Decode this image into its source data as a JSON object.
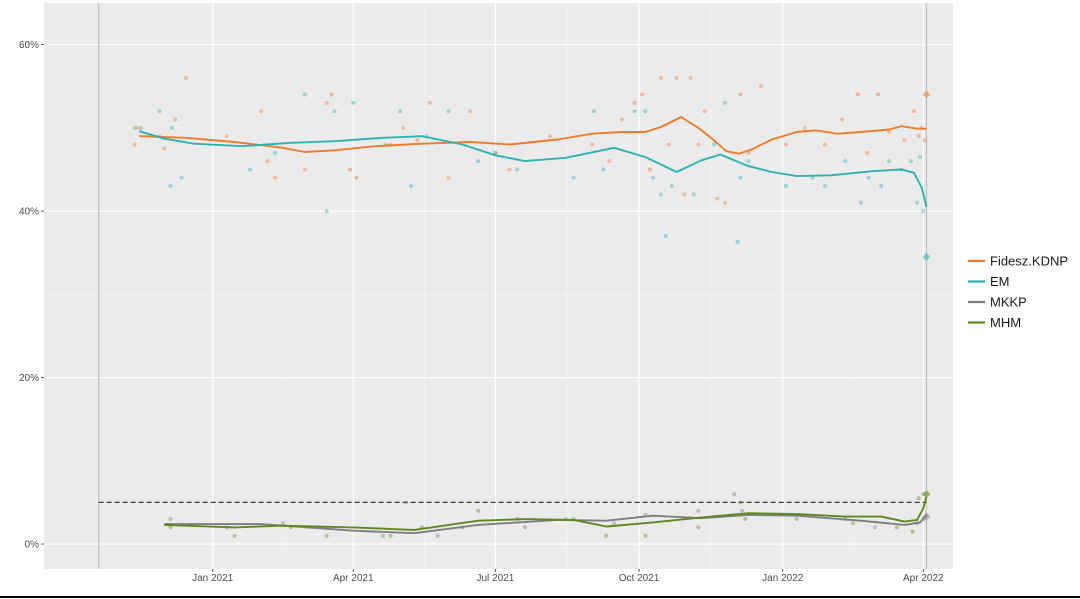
{
  "chart_data": {
    "type": "line",
    "title": "",
    "xlabel": "",
    "ylabel": "",
    "ylim": [
      -3,
      65
    ],
    "xlim": [
      "2020-09-15",
      "2022-04-20"
    ],
    "y_ticks": [
      {
        "value": 0,
        "label": "0%"
      },
      {
        "value": 20,
        "label": "20%"
      },
      {
        "value": 40,
        "label": "40%"
      },
      {
        "value": 60,
        "label": "60%"
      }
    ],
    "x_ticks": [
      {
        "date": "2021-01-01",
        "label": "Jan 2021"
      },
      {
        "date": "2021-04-01",
        "label": "Apr 2021"
      },
      {
        "date": "2021-07-01",
        "label": "Jul 2021"
      },
      {
        "date": "2021-10-01",
        "label": "Oct 2021"
      },
      {
        "date": "2022-01-01",
        "label": "Jan 2022"
      },
      {
        "date": "2022-04-01",
        "label": "Apr 2022"
      }
    ],
    "grid": true,
    "legend_position": "right",
    "vertical_lines": [
      "2020-10-20",
      "2022-04-03"
    ],
    "threshold": {
      "value": 5,
      "style": "dashed",
      "from": "2020-10-20",
      "to": "2022-04-03"
    },
    "series": [
      {
        "name": "Fidesz.KDNP",
        "color": "#f07b2a",
        "line": [
          [
            "2020-11-15",
            49.0
          ],
          [
            "2020-12-15",
            48.8
          ],
          [
            "2021-01-15",
            48.3
          ],
          [
            "2021-02-15",
            47.6
          ],
          [
            "2021-03-01",
            47.1
          ],
          [
            "2021-03-20",
            47.3
          ],
          [
            "2021-04-15",
            47.8
          ],
          [
            "2021-05-15",
            48.1
          ],
          [
            "2021-06-15",
            48.3
          ],
          [
            "2021-07-10",
            48.0
          ],
          [
            "2021-08-10",
            48.6
          ],
          [
            "2021-09-01",
            49.3
          ],
          [
            "2021-09-20",
            49.5
          ],
          [
            "2021-10-05",
            49.5
          ],
          [
            "2021-10-15",
            50.1
          ],
          [
            "2021-10-28",
            51.3
          ],
          [
            "2021-11-08",
            50.0
          ],
          [
            "2021-11-18",
            48.5
          ],
          [
            "2021-11-26",
            47.2
          ],
          [
            "2021-12-04",
            46.9
          ],
          [
            "2021-12-12",
            47.4
          ],
          [
            "2021-12-25",
            48.6
          ],
          [
            "2022-01-10",
            49.5
          ],
          [
            "2022-01-22",
            49.7
          ],
          [
            "2022-02-05",
            49.3
          ],
          [
            "2022-02-20",
            49.5
          ],
          [
            "2022-03-10",
            49.8
          ],
          [
            "2022-03-18",
            50.2
          ],
          [
            "2022-03-28",
            49.9
          ],
          [
            "2022-04-03",
            49.9
          ]
        ],
        "points": [
          [
            "2020-11-12",
            48.0
          ],
          [
            "2020-11-14",
            50.0
          ],
          [
            "2020-11-28",
            49.0
          ],
          [
            "2020-12-01",
            47.5
          ],
          [
            "2020-12-08",
            51.0
          ],
          [
            "2020-12-15",
            56.0
          ],
          [
            "2021-01-10",
            49.0
          ],
          [
            "2021-02-01",
            52.0
          ],
          [
            "2021-02-05",
            46.0
          ],
          [
            "2021-02-10",
            44.0
          ],
          [
            "2021-03-01",
            45.0
          ],
          [
            "2021-03-15",
            53.0
          ],
          [
            "2021-03-18",
            54.0
          ],
          [
            "2021-03-30",
            45.0
          ],
          [
            "2021-04-03",
            44.0
          ],
          [
            "2021-04-25",
            48.0
          ],
          [
            "2021-05-03",
            50.0
          ],
          [
            "2021-05-12",
            48.5
          ],
          [
            "2021-05-20",
            53.0
          ],
          [
            "2021-06-01",
            44.0
          ],
          [
            "2021-06-15",
            52.0
          ],
          [
            "2021-07-01",
            47.0
          ],
          [
            "2021-07-10",
            45.0
          ],
          [
            "2021-08-05",
            49.0
          ],
          [
            "2021-09-01",
            48.0
          ],
          [
            "2021-09-12",
            46.0
          ],
          [
            "2021-09-20",
            51.0
          ],
          [
            "2021-09-28",
            53.0
          ],
          [
            "2021-10-03",
            54.0
          ],
          [
            "2021-10-08",
            45.0
          ],
          [
            "2021-10-15",
            56.0
          ],
          [
            "2021-10-20",
            48.0
          ],
          [
            "2021-10-25",
            56.0
          ],
          [
            "2021-10-30",
            42.0
          ],
          [
            "2021-11-03",
            56.0
          ],
          [
            "2021-11-08",
            48.0
          ],
          [
            "2021-11-12",
            52.0
          ],
          [
            "2021-11-20",
            41.5
          ],
          [
            "2021-11-25",
            41.0
          ],
          [
            "2021-12-05",
            54.0
          ],
          [
            "2021-12-10",
            47.0
          ],
          [
            "2021-12-18",
            55.0
          ],
          [
            "2022-01-03",
            48.0
          ],
          [
            "2022-01-15",
            50.0
          ],
          [
            "2022-01-28",
            48.0
          ],
          [
            "2022-02-08",
            51.0
          ],
          [
            "2022-02-18",
            54.0
          ],
          [
            "2022-02-24",
            47.0
          ],
          [
            "2022-03-03",
            54.0
          ],
          [
            "2022-03-10",
            49.5
          ],
          [
            "2022-03-20",
            48.5
          ],
          [
            "2022-03-26",
            52.0
          ],
          [
            "2022-03-29",
            49.0
          ],
          [
            "2022-03-31",
            50.0
          ],
          [
            "2022-04-02",
            48.5
          ]
        ],
        "marker": [
          "2022-04-03",
          54.0
        ]
      },
      {
        "name": "EM",
        "color": "#2db3b0",
        "line": [
          [
            "2020-11-15",
            49.6
          ],
          [
            "2020-12-01",
            48.7
          ],
          [
            "2020-12-20",
            48.1
          ],
          [
            "2021-01-20",
            47.8
          ],
          [
            "2021-02-20",
            48.2
          ],
          [
            "2021-03-20",
            48.4
          ],
          [
            "2021-04-20",
            48.8
          ],
          [
            "2021-05-15",
            49.0
          ],
          [
            "2021-06-10",
            48.0
          ],
          [
            "2021-07-01",
            46.7
          ],
          [
            "2021-07-20",
            46.0
          ],
          [
            "2021-08-15",
            46.4
          ],
          [
            "2021-09-15",
            47.6
          ],
          [
            "2021-10-05",
            46.5
          ],
          [
            "2021-10-25",
            44.7
          ],
          [
            "2021-11-10",
            46.1
          ],
          [
            "2021-11-22",
            46.8
          ],
          [
            "2021-12-10",
            45.4
          ],
          [
            "2021-12-25",
            44.7
          ],
          [
            "2022-01-10",
            44.2
          ],
          [
            "2022-02-01",
            44.3
          ],
          [
            "2022-02-28",
            44.8
          ],
          [
            "2022-03-18",
            45.0
          ],
          [
            "2022-03-26",
            44.6
          ],
          [
            "2022-03-31",
            42.8
          ],
          [
            "2022-04-03",
            40.5
          ]
        ],
        "points": [
          [
            "2020-11-12",
            50.0
          ],
          [
            "2020-11-16",
            50.0
          ],
          [
            "2020-11-28",
            52.0
          ],
          [
            "2020-12-05",
            43.0
          ],
          [
            "2020-12-06",
            50.0
          ],
          [
            "2020-12-12",
            44.0
          ],
          [
            "2021-01-25",
            45.0
          ],
          [
            "2021-02-10",
            47.0
          ],
          [
            "2021-03-01",
            54.0
          ],
          [
            "2021-03-15",
            40.0
          ],
          [
            "2021-03-20",
            52.0
          ],
          [
            "2021-04-01",
            53.0
          ],
          [
            "2021-04-22",
            48.0
          ],
          [
            "2021-05-01",
            52.0
          ],
          [
            "2021-05-08",
            43.0
          ],
          [
            "2021-05-18",
            49.0
          ],
          [
            "2021-06-01",
            52.0
          ],
          [
            "2021-06-20",
            46.0
          ],
          [
            "2021-07-01",
            47.0
          ],
          [
            "2021-07-15",
            45.0
          ],
          [
            "2021-08-20",
            44.0
          ],
          [
            "2021-09-02",
            52.0
          ],
          [
            "2021-09-08",
            45.0
          ],
          [
            "2021-09-28",
            52.0
          ],
          [
            "2021-10-05",
            52.0
          ],
          [
            "2021-10-10",
            44.0
          ],
          [
            "2021-10-15",
            42.0
          ],
          [
            "2021-10-18",
            37.0
          ],
          [
            "2021-10-22",
            43.0
          ],
          [
            "2021-11-05",
            42.0
          ],
          [
            "2021-11-18",
            48.0
          ],
          [
            "2021-11-25",
            53.0
          ],
          [
            "2021-12-03",
            36.3
          ],
          [
            "2021-12-05",
            44.0
          ],
          [
            "2021-12-10",
            46.0
          ],
          [
            "2022-01-03",
            43.0
          ],
          [
            "2022-01-20",
            44.0
          ],
          [
            "2022-01-28",
            43.0
          ],
          [
            "2022-02-10",
            46.0
          ],
          [
            "2022-02-20",
            41.0
          ],
          [
            "2022-02-25",
            44.0
          ],
          [
            "2022-03-05",
            43.0
          ],
          [
            "2022-03-10",
            46.0
          ],
          [
            "2022-03-18",
            45.0
          ],
          [
            "2022-03-24",
            46.0
          ],
          [
            "2022-03-28",
            41.0
          ],
          [
            "2022-03-30",
            46.5
          ],
          [
            "2022-04-01",
            40.0
          ]
        ],
        "marker": [
          "2022-04-03",
          34.5
        ]
      },
      {
        "name": "MKKP",
        "color": "#7f7f7f",
        "line": [
          [
            "2020-12-01",
            2.4
          ],
          [
            "2021-02-01",
            2.4
          ],
          [
            "2021-04-01",
            1.6
          ],
          [
            "2021-05-10",
            1.3
          ],
          [
            "2021-06-20",
            2.3
          ],
          [
            "2021-08-10",
            2.9
          ],
          [
            "2021-09-10",
            2.8
          ],
          [
            "2021-10-10",
            3.4
          ],
          [
            "2021-11-10",
            3.1
          ],
          [
            "2021-12-10",
            3.5
          ],
          [
            "2022-01-10",
            3.4
          ],
          [
            "2022-02-20",
            2.8
          ],
          [
            "2022-03-20",
            2.3
          ],
          [
            "2022-03-30",
            2.6
          ],
          [
            "2022-04-03",
            3.5
          ]
        ],
        "points": [
          [
            "2020-12-05",
            3.0
          ],
          [
            "2021-01-10",
            2.0
          ],
          [
            "2021-02-15",
            2.5
          ],
          [
            "2021-03-10",
            2.0
          ],
          [
            "2021-04-20",
            1.0
          ],
          [
            "2021-05-05",
            5.0
          ],
          [
            "2021-05-25",
            1.0
          ],
          [
            "2021-06-10",
            2.0
          ],
          [
            "2021-07-15",
            3.0
          ],
          [
            "2021-08-15",
            3.0
          ],
          [
            "2021-09-15",
            2.5
          ],
          [
            "2021-10-05",
            3.5
          ],
          [
            "2021-11-08",
            4.0
          ],
          [
            "2021-12-01",
            6.0
          ],
          [
            "2021-12-06",
            4.0
          ],
          [
            "2022-01-10",
            3.0
          ],
          [
            "2022-02-10",
            3.0
          ],
          [
            "2022-03-01",
            2.0
          ],
          [
            "2022-03-28",
            2.5
          ],
          [
            "2022-04-01",
            3.0
          ]
        ],
        "marker": [
          "2022-04-03",
          3.3
        ]
      },
      {
        "name": "MHM",
        "color": "#5b8a1e",
        "line": [
          [
            "2020-12-01",
            2.3
          ],
          [
            "2021-01-15",
            2.0
          ],
          [
            "2021-02-15",
            2.2
          ],
          [
            "2021-04-01",
            2.0
          ],
          [
            "2021-05-10",
            1.7
          ],
          [
            "2021-06-20",
            2.8
          ],
          [
            "2021-07-20",
            3.0
          ],
          [
            "2021-08-20",
            2.9
          ],
          [
            "2021-09-10",
            2.1
          ],
          [
            "2021-10-10",
            2.6
          ],
          [
            "2021-11-10",
            3.2
          ],
          [
            "2021-12-10",
            3.7
          ],
          [
            "2022-01-10",
            3.6
          ],
          [
            "2022-02-10",
            3.3
          ],
          [
            "2022-03-05",
            3.3
          ],
          [
            "2022-03-20",
            2.7
          ],
          [
            "2022-03-28",
            2.9
          ],
          [
            "2022-04-01",
            4.3
          ],
          [
            "2022-04-03",
            5.7
          ]
        ],
        "points": [
          [
            "2020-12-05",
            2.0
          ],
          [
            "2021-01-15",
            1.0
          ],
          [
            "2021-02-20",
            2.0
          ],
          [
            "2021-03-15",
            1.0
          ],
          [
            "2021-04-25",
            1.0
          ],
          [
            "2021-05-15",
            2.0
          ],
          [
            "2021-06-20",
            4.0
          ],
          [
            "2021-07-20",
            2.0
          ],
          [
            "2021-08-20",
            3.0
          ],
          [
            "2021-09-10",
            1.0
          ],
          [
            "2021-10-05",
            1.0
          ],
          [
            "2021-11-08",
            2.0
          ],
          [
            "2021-12-05",
            5.0
          ],
          [
            "2021-12-08",
            3.0
          ],
          [
            "2022-01-12",
            3.5
          ],
          [
            "2022-02-15",
            2.5
          ],
          [
            "2022-03-15",
            2.0
          ],
          [
            "2022-03-25",
            1.5
          ],
          [
            "2022-03-29",
            5.5
          ],
          [
            "2022-04-01",
            6.0
          ]
        ],
        "marker": [
          "2022-04-03",
          6.0
        ]
      }
    ]
  }
}
